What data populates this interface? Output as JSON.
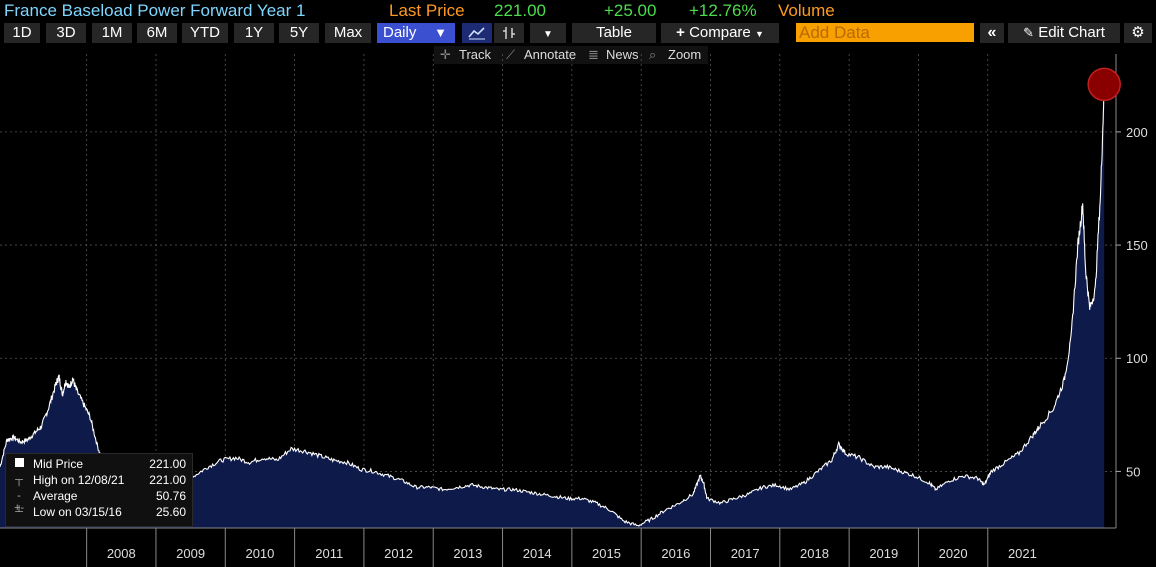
{
  "header": {
    "title": "France Baseload Power Forward Year 1",
    "last_price_label": "Last Price",
    "last_price": "221.00",
    "change": "+25.00",
    "change_pct": "+12.76%",
    "volume_label": "Volume"
  },
  "toolbar": {
    "ranges": [
      "1D",
      "3D",
      "1M",
      "6M",
      "YTD",
      "1Y",
      "5Y",
      "Max"
    ],
    "frequency": "Daily",
    "table_label": "Table",
    "compare_label": "Compare",
    "add_data_placeholder": "Add Data",
    "edit_chart_label": "Edit Chart"
  },
  "subtools": {
    "track": "Track",
    "annotate": "Annotate",
    "news": "News",
    "zoom": "Zoom"
  },
  "legend": {
    "mid_price_label": "Mid Price",
    "mid_price_value": "221.00",
    "high_label": "High on 12/08/21",
    "high_value": "221.00",
    "average_label": "Average",
    "average_value": "50.76",
    "low_label": "Low on 03/15/16",
    "low_value": "25.60"
  },
  "colors": {
    "title": "#7fd6ff",
    "label_orange": "#ff9a1f",
    "price_green": "#4cdc4c",
    "area_fill": "#0d1a4a",
    "active_button": "#3b4fd1"
  },
  "chart_data": {
    "type": "area",
    "series": [
      {
        "name": "Mid Price",
        "points": [
          [
            2007.0,
            52
          ],
          [
            2007.1,
            64
          ],
          [
            2007.2,
            65
          ],
          [
            2007.3,
            63
          ],
          [
            2007.4,
            64
          ],
          [
            2007.5,
            67
          ],
          [
            2007.6,
            70
          ],
          [
            2007.7,
            78
          ],
          [
            2007.8,
            88
          ],
          [
            2007.85,
            92
          ],
          [
            2007.9,
            84
          ],
          [
            2007.95,
            90
          ],
          [
            2008.0,
            87
          ],
          [
            2008.05,
            91
          ],
          [
            2008.1,
            86
          ],
          [
            2008.2,
            80
          ],
          [
            2008.3,
            74
          ],
          [
            2008.4,
            62
          ],
          [
            2008.5,
            52
          ],
          [
            2008.6,
            46
          ],
          [
            2008.7,
            50
          ],
          [
            2008.8,
            54
          ],
          [
            2009.0,
            52
          ],
          [
            2009.2,
            53
          ],
          [
            2009.4,
            51
          ],
          [
            2009.6,
            50
          ],
          [
            2009.8,
            48
          ],
          [
            2010.0,
            52
          ],
          [
            2010.2,
            55
          ],
          [
            2010.4,
            56
          ],
          [
            2010.6,
            54
          ],
          [
            2010.8,
            56
          ],
          [
            2011.0,
            55
          ],
          [
            2011.2,
            60
          ],
          [
            2011.4,
            59
          ],
          [
            2011.6,
            57
          ],
          [
            2011.8,
            55
          ],
          [
            2012.0,
            54
          ],
          [
            2012.2,
            51
          ],
          [
            2012.4,
            50
          ],
          [
            2012.6,
            48
          ],
          [
            2012.8,
            46
          ],
          [
            2013.0,
            43
          ],
          [
            2013.2,
            43
          ],
          [
            2013.4,
            42
          ],
          [
            2013.6,
            43
          ],
          [
            2013.8,
            44
          ],
          [
            2014.0,
            43
          ],
          [
            2014.2,
            42
          ],
          [
            2014.4,
            42
          ],
          [
            2014.6,
            41
          ],
          [
            2014.8,
            40
          ],
          [
            2015.0,
            39
          ],
          [
            2015.2,
            38
          ],
          [
            2015.4,
            38
          ],
          [
            2015.6,
            36
          ],
          [
            2015.8,
            33
          ],
          [
            2016.0,
            28
          ],
          [
            2016.2,
            26
          ],
          [
            2016.4,
            29
          ],
          [
            2016.6,
            33
          ],
          [
            2016.8,
            36
          ],
          [
            2017.0,
            40
          ],
          [
            2017.1,
            48
          ],
          [
            2017.15,
            45
          ],
          [
            2017.2,
            38
          ],
          [
            2017.4,
            36
          ],
          [
            2017.6,
            38
          ],
          [
            2017.8,
            40
          ],
          [
            2018.0,
            43
          ],
          [
            2018.2,
            44
          ],
          [
            2018.4,
            42
          ],
          [
            2018.6,
            45
          ],
          [
            2018.8,
            50
          ],
          [
            2019.0,
            55
          ],
          [
            2019.1,
            62
          ],
          [
            2019.2,
            58
          ],
          [
            2019.4,
            56
          ],
          [
            2019.6,
            52
          ],
          [
            2019.8,
            52
          ],
          [
            2020.0,
            50
          ],
          [
            2020.2,
            48
          ],
          [
            2020.4,
            45
          ],
          [
            2020.5,
            42
          ],
          [
            2020.7,
            46
          ],
          [
            2020.9,
            48
          ],
          [
            2021.1,
            47
          ],
          [
            2021.2,
            44
          ],
          [
            2021.3,
            50
          ],
          [
            2021.5,
            54
          ],
          [
            2021.7,
            58
          ],
          [
            2021.9,
            66
          ],
          [
            2022.0,
            70
          ],
          [
            2022.2,
            78
          ],
          [
            2022.35,
            90
          ],
          [
            2022.45,
            108
          ],
          [
            2022.55,
            150
          ],
          [
            2022.62,
            168
          ],
          [
            2022.66,
            140
          ],
          [
            2022.72,
            122
          ],
          [
            2022.8,
            130
          ],
          [
            2022.88,
            175
          ],
          [
            2022.93,
            221
          ]
        ]
      }
    ],
    "x_ticks": [
      "2008",
      "2009",
      "2010",
      "2011",
      "2012",
      "2013",
      "2014",
      "2015",
      "2016",
      "2017",
      "2018",
      "2019",
      "2020",
      "2021"
    ],
    "y_ticks": [
      50,
      100,
      150,
      200
    ],
    "ylim": [
      25,
      230
    ],
    "grid": true,
    "last_point_marker": true
  }
}
